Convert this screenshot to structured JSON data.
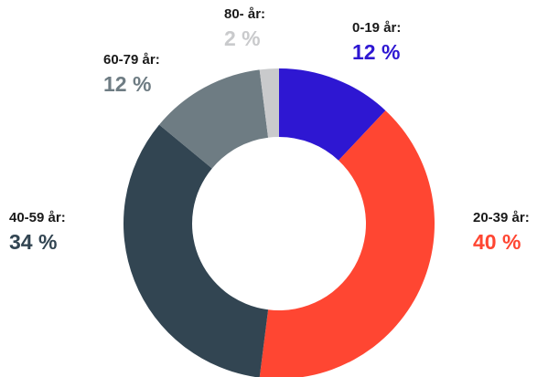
{
  "chart_data": {
    "type": "pie",
    "donut": true,
    "categories": [
      "0-19 år:",
      "20-39 år:",
      "40-59 år:",
      "60-79 år:",
      "80- år:"
    ],
    "values": [
      12,
      40,
      34,
      12,
      2
    ],
    "value_labels": [
      "12 %",
      "40 %",
      "34 %",
      "12 %",
      "2 %"
    ],
    "colors": [
      "#2e17d2",
      "#ff4632",
      "#324552",
      "#6e7c83",
      "#c9cacc"
    ]
  }
}
